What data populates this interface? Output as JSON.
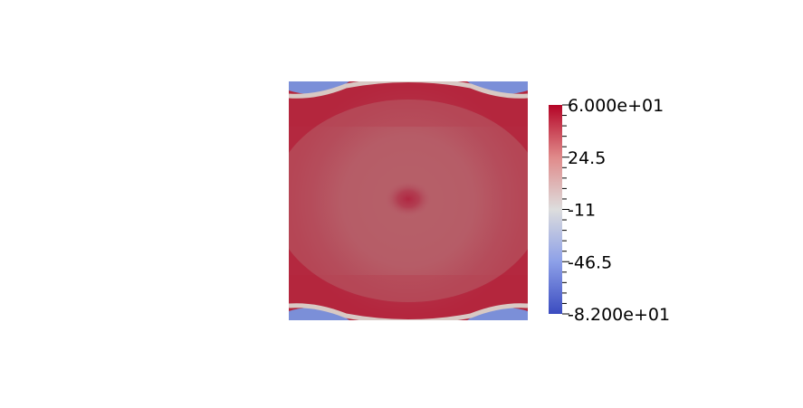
{
  "chart_data": {
    "type": "heatmap",
    "title": "",
    "xlabel": "",
    "ylabel": "",
    "colormap": {
      "name": "cool-to-warm",
      "min": -82,
      "max": 60,
      "stops": [
        "#3b4cc0",
        "#dddddd",
        "#b40426"
      ]
    },
    "colorbar": {
      "ticks": [
        {
          "value": 60,
          "label": "6.000e+01"
        },
        {
          "value": 24.5,
          "label": "24.5"
        },
        {
          "value": -11,
          "label": "-11"
        },
        {
          "value": -46.5,
          "label": "-46.5"
        },
        {
          "value": -82,
          "label": "-8.200e+01"
        }
      ],
      "minor_ticks_per_interval": 5,
      "placement": "right"
    },
    "field_description": {
      "centre_value": 30,
      "centre_spot_value": 52,
      "edge_band_value": 55,
      "boundary_value": -8,
      "corner_value": -82
    }
  }
}
